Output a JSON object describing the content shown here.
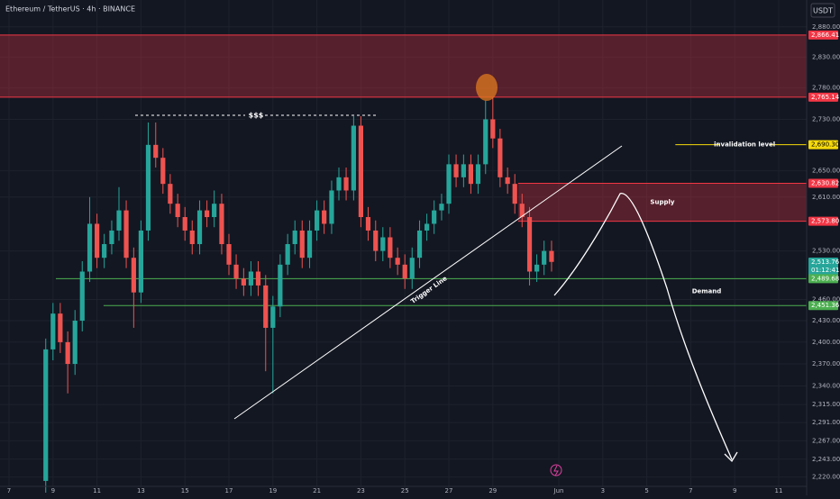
{
  "chart_data": {
    "type": "candlestick",
    "title": "Ethereum / TetherUS · 4h · BINANCE",
    "currency": "USDT",
    "log_scale": true,
    "grid": true,
    "up_color": "#26a69a",
    "down_color": "#ef5350",
    "ylim": [
      2208,
      2925
    ],
    "yticks": [
      {
        "value": 2880,
        "label": "2,880.00"
      },
      {
        "value": 2830,
        "label": "2,830.00"
      },
      {
        "value": 2780,
        "label": "2,780.00"
      },
      {
        "value": 2730,
        "label": "2,730.00"
      },
      {
        "value": 2650,
        "label": "2,650.00"
      },
      {
        "value": 2610,
        "label": "2,610.00"
      },
      {
        "value": 2530,
        "label": "2,530.00"
      },
      {
        "value": 2460,
        "label": "2,460.00"
      },
      {
        "value": 2430,
        "label": "2,430.00"
      },
      {
        "value": 2400,
        "label": "2,400.00"
      },
      {
        "value": 2370,
        "label": "2,370.00"
      },
      {
        "value": 2340,
        "label": "2,340.00"
      },
      {
        "value": 2315,
        "label": "2,315.00"
      },
      {
        "value": 2291,
        "label": "2,291.00"
      },
      {
        "value": 2267,
        "label": "2,267.00"
      },
      {
        "value": 2243,
        "label": "2,243.00"
      },
      {
        "value": 2220,
        "label": "2,220.00"
      }
    ],
    "xlim": [
      -0.41,
      36.27
    ],
    "xticks": [
      {
        "value": 0,
        "label": "7"
      },
      {
        "value": 2,
        "label": "9"
      },
      {
        "value": 4,
        "label": "11"
      },
      {
        "value": 6,
        "label": "13"
      },
      {
        "value": 8,
        "label": "15"
      },
      {
        "value": 10,
        "label": "17"
      },
      {
        "value": 12,
        "label": "19"
      },
      {
        "value": 14,
        "label": "21"
      },
      {
        "value": 16,
        "label": "23"
      },
      {
        "value": 18,
        "label": "25"
      },
      {
        "value": 20,
        "label": "27"
      },
      {
        "value": 22,
        "label": "29"
      },
      {
        "value": 25,
        "label": "Jun"
      },
      {
        "value": 27,
        "label": "3"
      },
      {
        "value": 29,
        "label": "5"
      },
      {
        "value": 31,
        "label": "7"
      },
      {
        "value": 33,
        "label": "9"
      },
      {
        "value": 35,
        "label": "11"
      }
    ],
    "candles": [
      {
        "x": 1.67,
        "o": 2215,
        "h": 2405,
        "l": 2200,
        "c": 2390
      },
      {
        "x": 2,
        "o": 2390,
        "h": 2455,
        "l": 2375,
        "c": 2440
      },
      {
        "x": 2.33,
        "o": 2440,
        "h": 2455,
        "l": 2385,
        "c": 2400
      },
      {
        "x": 2.67,
        "o": 2400,
        "h": 2415,
        "l": 2330,
        "c": 2370
      },
      {
        "x": 3,
        "o": 2370,
        "h": 2445,
        "l": 2355,
        "c": 2430
      },
      {
        "x": 3.33,
        "o": 2430,
        "h": 2515,
        "l": 2415,
        "c": 2500
      },
      {
        "x": 3.67,
        "o": 2500,
        "h": 2610,
        "l": 2485,
        "c": 2570
      },
      {
        "x": 4,
        "o": 2570,
        "h": 2585,
        "l": 2505,
        "c": 2520
      },
      {
        "x": 4.33,
        "o": 2520,
        "h": 2555,
        "l": 2505,
        "c": 2540
      },
      {
        "x": 4.67,
        "o": 2540,
        "h": 2575,
        "l": 2525,
        "c": 2560
      },
      {
        "x": 5,
        "o": 2560,
        "h": 2625,
        "l": 2545,
        "c": 2590
      },
      {
        "x": 5.33,
        "o": 2590,
        "h": 2605,
        "l": 2505,
        "c": 2520
      },
      {
        "x": 5.67,
        "o": 2520,
        "h": 2535,
        "l": 2420,
        "c": 2470
      },
      {
        "x": 6,
        "o": 2470,
        "h": 2575,
        "l": 2455,
        "c": 2560
      },
      {
        "x": 6.33,
        "o": 2560,
        "h": 2725,
        "l": 2545,
        "c": 2690
      },
      {
        "x": 6.67,
        "o": 2690,
        "h": 2725,
        "l": 2655,
        "c": 2670
      },
      {
        "x": 7,
        "o": 2670,
        "h": 2685,
        "l": 2615,
        "c": 2630
      },
      {
        "x": 7.33,
        "o": 2630,
        "h": 2645,
        "l": 2585,
        "c": 2600
      },
      {
        "x": 7.67,
        "o": 2600,
        "h": 2615,
        "l": 2565,
        "c": 2580
      },
      {
        "x": 8,
        "o": 2580,
        "h": 2595,
        "l": 2545,
        "c": 2560
      },
      {
        "x": 8.33,
        "o": 2560,
        "h": 2575,
        "l": 2525,
        "c": 2540
      },
      {
        "x": 8.67,
        "o": 2540,
        "h": 2605,
        "l": 2525,
        "c": 2590
      },
      {
        "x": 9,
        "o": 2590,
        "h": 2605,
        "l": 2565,
        "c": 2580
      },
      {
        "x": 9.33,
        "o": 2580,
        "h": 2620,
        "l": 2565,
        "c": 2600
      },
      {
        "x": 9.67,
        "o": 2600,
        "h": 2615,
        "l": 2525,
        "c": 2540
      },
      {
        "x": 10,
        "o": 2540,
        "h": 2555,
        "l": 2495,
        "c": 2510
      },
      {
        "x": 10.33,
        "o": 2510,
        "h": 2525,
        "l": 2475,
        "c": 2490
      },
      {
        "x": 10.67,
        "o": 2490,
        "h": 2505,
        "l": 2465,
        "c": 2480
      },
      {
        "x": 11,
        "o": 2480,
        "h": 2515,
        "l": 2465,
        "c": 2500
      },
      {
        "x": 11.33,
        "o": 2500,
        "h": 2515,
        "l": 2465,
        "c": 2480
      },
      {
        "x": 11.67,
        "o": 2480,
        "h": 2495,
        "l": 2360,
        "c": 2420
      },
      {
        "x": 12,
        "o": 2420,
        "h": 2465,
        "l": 2330,
        "c": 2450
      },
      {
        "x": 12.33,
        "o": 2450,
        "h": 2525,
        "l": 2435,
        "c": 2510
      },
      {
        "x": 12.67,
        "o": 2510,
        "h": 2555,
        "l": 2495,
        "c": 2540
      },
      {
        "x": 13,
        "o": 2540,
        "h": 2575,
        "l": 2525,
        "c": 2560
      },
      {
        "x": 13.33,
        "o": 2560,
        "h": 2575,
        "l": 2505,
        "c": 2520
      },
      {
        "x": 13.67,
        "o": 2520,
        "h": 2575,
        "l": 2505,
        "c": 2560
      },
      {
        "x": 14,
        "o": 2560,
        "h": 2605,
        "l": 2545,
        "c": 2590
      },
      {
        "x": 14.33,
        "o": 2590,
        "h": 2605,
        "l": 2555,
        "c": 2570
      },
      {
        "x": 14.67,
        "o": 2570,
        "h": 2635,
        "l": 2555,
        "c": 2620
      },
      {
        "x": 15,
        "o": 2620,
        "h": 2655,
        "l": 2605,
        "c": 2640
      },
      {
        "x": 15.33,
        "o": 2640,
        "h": 2655,
        "l": 2605,
        "c": 2620
      },
      {
        "x": 15.67,
        "o": 2620,
        "h": 2735,
        "l": 2605,
        "c": 2720
      },
      {
        "x": 16,
        "o": 2720,
        "h": 2735,
        "l": 2565,
        "c": 2580
      },
      {
        "x": 16.33,
        "o": 2580,
        "h": 2595,
        "l": 2545,
        "c": 2560
      },
      {
        "x": 16.67,
        "o": 2560,
        "h": 2575,
        "l": 2515,
        "c": 2530
      },
      {
        "x": 17,
        "o": 2530,
        "h": 2565,
        "l": 2515,
        "c": 2550
      },
      {
        "x": 17.33,
        "o": 2550,
        "h": 2565,
        "l": 2505,
        "c": 2520
      },
      {
        "x": 17.67,
        "o": 2520,
        "h": 2535,
        "l": 2495,
        "c": 2510
      },
      {
        "x": 18,
        "o": 2510,
        "h": 2525,
        "l": 2475,
        "c": 2490
      },
      {
        "x": 18.33,
        "o": 2490,
        "h": 2535,
        "l": 2475,
        "c": 2520
      },
      {
        "x": 18.67,
        "o": 2520,
        "h": 2575,
        "l": 2505,
        "c": 2560
      },
      {
        "x": 19,
        "o": 2560,
        "h": 2585,
        "l": 2545,
        "c": 2570
      },
      {
        "x": 19.33,
        "o": 2570,
        "h": 2605,
        "l": 2555,
        "c": 2590
      },
      {
        "x": 19.67,
        "o": 2590,
        "h": 2615,
        "l": 2575,
        "c": 2600
      },
      {
        "x": 20,
        "o": 2600,
        "h": 2675,
        "l": 2585,
        "c": 2660
      },
      {
        "x": 20.33,
        "o": 2660,
        "h": 2675,
        "l": 2625,
        "c": 2640
      },
      {
        "x": 20.67,
        "o": 2640,
        "h": 2675,
        "l": 2625,
        "c": 2660
      },
      {
        "x": 21,
        "o": 2660,
        "h": 2675,
        "l": 2615,
        "c": 2630
      },
      {
        "x": 21.33,
        "o": 2630,
        "h": 2675,
        "l": 2615,
        "c": 2660
      },
      {
        "x": 21.67,
        "o": 2660,
        "h": 2760,
        "l": 2645,
        "c": 2730
      },
      {
        "x": 22,
        "o": 2730,
        "h": 2765,
        "l": 2685,
        "c": 2700
      },
      {
        "x": 22.33,
        "o": 2700,
        "h": 2715,
        "l": 2625,
        "c": 2640
      },
      {
        "x": 22.67,
        "o": 2640,
        "h": 2655,
        "l": 2615,
        "c": 2630
      },
      {
        "x": 23,
        "o": 2630,
        "h": 2645,
        "l": 2585,
        "c": 2600
      },
      {
        "x": 23.33,
        "o": 2600,
        "h": 2615,
        "l": 2565,
        "c": 2580
      },
      {
        "x": 23.67,
        "o": 2580,
        "h": 2595,
        "l": 2480,
        "c": 2500
      },
      {
        "x": 24,
        "o": 2500,
        "h": 2525,
        "l": 2485,
        "c": 2510
      },
      {
        "x": 24.33,
        "o": 2510,
        "h": 2545,
        "l": 2495,
        "c": 2530
      },
      {
        "x": 24.67,
        "o": 2530,
        "h": 2545,
        "l": 2500,
        "c": 2514
      }
    ],
    "zones": [
      {
        "low": 2765.14,
        "high": 2866.41,
        "x_from": -0.41,
        "color": "#f23645"
      },
      {
        "label": "Supply",
        "low": 2573.8,
        "high": 2630.82,
        "x_from": 23.15,
        "color": "#f23645"
      }
    ],
    "levels": [
      {
        "label": "invalidation level",
        "value": 2690.3,
        "x_from": 30.3,
        "color": "#f5d90a"
      },
      {
        "label": "Demand",
        "value": 2489.68,
        "x_from": 2.13,
        "color": "#4caf50"
      },
      {
        "value": 2451.36,
        "x_from": 4.3,
        "color": "#4caf50"
      }
    ],
    "annotations": {
      "liquidity": "$$$",
      "trigger": "Trigger Line"
    },
    "price_labels": [
      {
        "value": 2866.41,
        "label": "2,866.41",
        "color": "#f23645"
      },
      {
        "value": 2765.14,
        "label": "2,765.14",
        "color": "#f23645"
      },
      {
        "value": 2690.3,
        "label": "2,690.30",
        "color": "#f5d90a"
      },
      {
        "value": 2630.82,
        "label": "2,630.82",
        "color": "#f23645"
      },
      {
        "value": 2573.8,
        "label": "2,573.80",
        "color": "#f23645"
      },
      {
        "value": 2513.76,
        "label": "2,513.76",
        "countdown": "01:12:41",
        "color": "#26a69a"
      },
      {
        "value": 2489.68,
        "label": "2,489.68",
        "color": "#4caf50"
      },
      {
        "value": 2451.36,
        "label": "2,451.36",
        "color": "#4caf50"
      }
    ]
  }
}
